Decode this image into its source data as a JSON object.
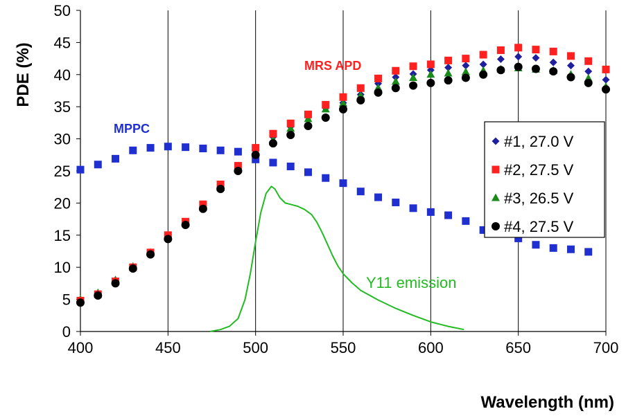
{
  "colors": {
    "series1": "#1f1f9e",
    "series2": "#ff2020",
    "series3": "#1a8a1a",
    "series4": "#000000",
    "mppc": "#1f2fd0",
    "emission": "#22bb22",
    "mrs_label": "#ff2020",
    "mppc_label": "#1f2fd0",
    "grid": "#000000"
  },
  "chart_data": {
    "type": "scatter",
    "xlabel": "Wavelength (nm)",
    "ylabel": "PDE (%)",
    "xlim": [
      400,
      700
    ],
    "ylim": [
      0,
      50
    ],
    "xticks": [
      "400",
      "450",
      "500",
      "550",
      "600",
      "650",
      "700"
    ],
    "yticks": [
      "0",
      "5",
      "10",
      "15",
      "20",
      "25",
      "30",
      "35",
      "40",
      "45",
      "50"
    ],
    "grid": "vertical",
    "legend_position": "right",
    "annotations": [
      {
        "text": "MRS APD",
        "x": 531,
        "y": 41.0,
        "color": "red"
      },
      {
        "text": "MPPC",
        "x": 417,
        "y": 32.0,
        "color": "blue"
      },
      {
        "text": "Y11 emission",
        "x": 560,
        "y": 7.6,
        "color": "green"
      }
    ],
    "series": [
      {
        "name": "#1, 27.0 V",
        "marker": "diamond",
        "x": [
          400,
          410,
          420,
          430,
          440,
          450,
          460,
          470,
          480,
          490,
          500,
          510,
          520,
          530,
          540,
          550,
          560,
          570,
          580,
          590,
          600,
          610,
          620,
          630,
          640,
          650,
          660,
          670,
          680,
          690,
          700
        ],
        "y": [
          4.8,
          5.9,
          7.7,
          9.9,
          12.2,
          14.6,
          16.9,
          19.4,
          22.4,
          25.5,
          28.3,
          30.3,
          31.9,
          33.4,
          34.8,
          35.6,
          36.9,
          38.6,
          39.6,
          40.1,
          40.7,
          41.1,
          41.4,
          41.6,
          42.4,
          42.8,
          42.6,
          41.9,
          41.4,
          40.5,
          39.2
        ]
      },
      {
        "name": "#2, 27.5 V",
        "marker": "square",
        "x": [
          400,
          410,
          420,
          430,
          440,
          450,
          460,
          470,
          480,
          490,
          500,
          510,
          520,
          530,
          540,
          550,
          560,
          570,
          580,
          590,
          600,
          610,
          620,
          630,
          640,
          650,
          660,
          670,
          680,
          690,
          700
        ],
        "y": [
          4.8,
          5.8,
          7.8,
          10.0,
          12.3,
          15.0,
          17.1,
          19.8,
          22.9,
          25.8,
          28.6,
          30.8,
          32.4,
          33.8,
          35.3,
          36.5,
          37.9,
          39.4,
          40.6,
          41.3,
          41.6,
          42.2,
          42.5,
          43.1,
          43.8,
          44.2,
          43.9,
          43.6,
          42.9,
          42.1,
          40.8
        ]
      },
      {
        "name": "#3, 26.5 V",
        "marker": "triangle",
        "x": [
          400,
          410,
          420,
          430,
          440,
          450,
          460,
          470,
          480,
          490,
          500,
          510,
          520,
          530,
          540,
          550,
          560,
          570,
          580,
          590,
          600,
          610,
          620,
          630,
          640,
          650,
          660,
          670,
          680,
          690,
          700
        ],
        "y": [
          5.0,
          6.0,
          8.0,
          10.1,
          12.3,
          14.8,
          16.9,
          19.4,
          22.4,
          25.3,
          27.8,
          29.8,
          31.6,
          33.1,
          34.6,
          35.5,
          36.7,
          37.9,
          38.9,
          39.5,
          40.0,
          40.2,
          40.4,
          40.6,
          40.8,
          41.0,
          40.8,
          40.6,
          40.0,
          39.4,
          38.1
        ]
      },
      {
        "name": "#4, 27.5 V",
        "marker": "circle",
        "x": [
          400,
          410,
          420,
          430,
          440,
          450,
          460,
          470,
          480,
          490,
          500,
          510,
          520,
          530,
          540,
          550,
          560,
          570,
          580,
          590,
          600,
          610,
          620,
          630,
          640,
          650,
          660,
          670,
          680,
          690,
          700
        ],
        "y": [
          4.5,
          5.6,
          7.5,
          9.8,
          12.0,
          14.4,
          16.6,
          19.1,
          22.2,
          25.0,
          27.5,
          29.3,
          30.6,
          32.0,
          33.3,
          34.6,
          36.0,
          37.2,
          37.9,
          38.3,
          38.7,
          39.1,
          39.5,
          40.0,
          40.7,
          41.2,
          40.9,
          40.5,
          39.6,
          38.7,
          37.7
        ]
      },
      {
        "name": "",
        "label": "MPPC",
        "marker": "square",
        "x": [
          400,
          410,
          420,
          430,
          440,
          450,
          460,
          470,
          480,
          490,
          500,
          510,
          520,
          530,
          540,
          550,
          560,
          570,
          580,
          590,
          600,
          610,
          620,
          630,
          640,
          650,
          660,
          670,
          680,
          690
        ],
        "y": [
          25.2,
          26.0,
          26.9,
          28.2,
          28.6,
          28.8,
          28.7,
          28.5,
          28.2,
          28.0,
          26.8,
          26.3,
          25.7,
          24.8,
          23.9,
          23.1,
          21.8,
          20.9,
          20.1,
          19.2,
          18.6,
          18.1,
          17.2,
          15.8,
          15.2,
          14.5,
          13.5,
          13.0,
          12.8,
          12.4
        ]
      },
      {
        "name": "",
        "label": "Y11 emission",
        "type": "line",
        "x": [
          474,
          480,
          485,
          490,
          494,
          497,
          500,
          503,
          506,
          509,
          511,
          514,
          517,
          520,
          524,
          528,
          532,
          535,
          538,
          541,
          544,
          547,
          550,
          555,
          560,
          570,
          580,
          590,
          600,
          610,
          619
        ],
        "y": [
          0.0,
          0.3,
          0.8,
          2.0,
          5.0,
          9.0,
          14.0,
          18.5,
          21.5,
          22.6,
          22.2,
          20.8,
          20.0,
          19.8,
          19.5,
          19.0,
          18.2,
          17.0,
          15.4,
          13.6,
          11.8,
          10.2,
          9.0,
          7.6,
          6.4,
          4.9,
          3.6,
          2.5,
          1.5,
          0.8,
          0.3
        ]
      }
    ]
  }
}
